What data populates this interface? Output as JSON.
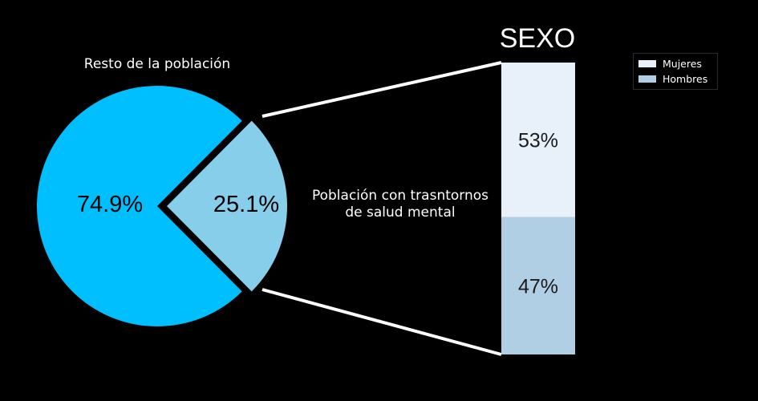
{
  "chart_data": [
    {
      "type": "pie",
      "slices": [
        {
          "label": "Resto de la población",
          "value": 74.9,
          "value_label": "74.9%",
          "color": "#00BFFF"
        },
        {
          "label": "Población con trasntornos de salud mental",
          "value": 25.1,
          "value_label": "25.1%",
          "color": "#87CEEB",
          "exploded": true
        }
      ],
      "annotations": {
        "top_label": "Resto de la población",
        "side_label_line1": "Población con trasntornos",
        "side_label_line2": "de salud mental"
      }
    },
    {
      "type": "bar",
      "stacked": true,
      "title": "SEXO",
      "series": [
        {
          "name": "Mujeres",
          "value": 53,
          "value_label": "53%",
          "color": "#E8F0FA"
        },
        {
          "name": "Hombres",
          "value": 47,
          "value_label": "47%",
          "color": "#B0CFE4"
        }
      ],
      "ylim": [
        0,
        100
      ],
      "legend_position": "top-right"
    }
  ],
  "colors": {
    "background": "#000000",
    "connector": "#FFFFFF"
  }
}
